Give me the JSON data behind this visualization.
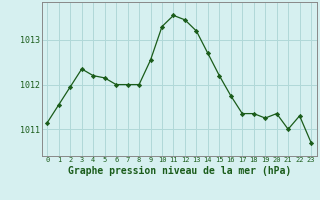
{
  "x": [
    0,
    1,
    2,
    3,
    4,
    5,
    6,
    7,
    8,
    9,
    10,
    11,
    12,
    13,
    14,
    15,
    16,
    17,
    18,
    19,
    20,
    21,
    22,
    23
  ],
  "y": [
    1011.15,
    1011.55,
    1011.95,
    1012.35,
    1012.2,
    1012.15,
    1012.0,
    1012.0,
    1012.0,
    1012.55,
    1013.3,
    1013.55,
    1013.45,
    1013.2,
    1012.7,
    1012.2,
    1011.75,
    1011.35,
    1011.35,
    1011.25,
    1011.35,
    1011.0,
    1011.3,
    1010.7
  ],
  "line_color": "#1a5c1a",
  "marker": "D",
  "marker_size": 2.2,
  "bg_color": "#d6f0f0",
  "grid_color": "#b0d8d8",
  "border_color": "#888888",
  "title": "Graphe pression niveau de la mer (hPa)",
  "title_color": "#1a5c1a",
  "title_fontsize": 7.0,
  "yticks": [
    1011,
    1012,
    1013
  ],
  "xtick_color": "#1a5c1a",
  "ytick_color": "#1a5c1a",
  "ylim": [
    1010.4,
    1013.85
  ],
  "xlim": [
    -0.5,
    23.5
  ],
  "xtick_fontsize": 5.0,
  "ytick_fontsize": 6.0
}
